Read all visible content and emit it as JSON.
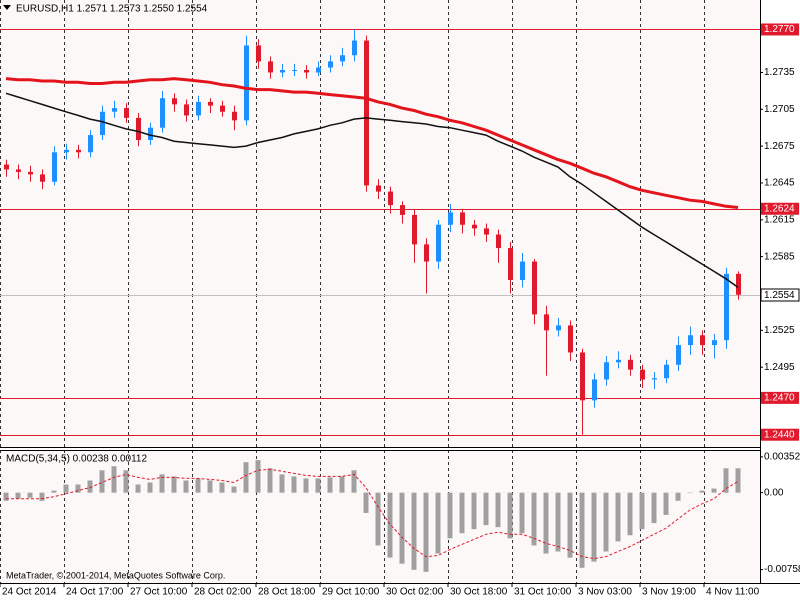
{
  "chart_data": [
    {
      "type": "candlestick",
      "title": "EURUSD,H1  1.2571 1.2573 1.2550 1.2554",
      "x": [
        1.5,
        4.5,
        7.5,
        10.5,
        13.5,
        16.5,
        19.5,
        22.5,
        25.5,
        28.5,
        31.5,
        34.5,
        37.5,
        40.5,
        43.5,
        46.5,
        49.5,
        52.5,
        55.5,
        58.5,
        61.5,
        64.5,
        67.5,
        70.5,
        73.5,
        76.5,
        79.5,
        82.5,
        85.5,
        88.5,
        91.5,
        94.5,
        97.5,
        100.5,
        103.5,
        106.5,
        109.5,
        112.5,
        115.5,
        118.5,
        121.5,
        124.5,
        127.5,
        130.5,
        133.5,
        136.5,
        139.5,
        142.5,
        145.5,
        148.5,
        151.5,
        154.5,
        157.5,
        160.5,
        163.5,
        166.5,
        169.5,
        172.5,
        175.5,
        178.5,
        181.5,
        184.5
      ],
      "open": [
        1.266,
        1.2656,
        1.2654,
        1.2652,
        1.2646,
        1.267,
        1.2672,
        1.267,
        1.2684,
        1.2703,
        1.2706,
        1.2698,
        1.268,
        1.269,
        1.2714,
        1.2709,
        1.27,
        1.2711,
        1.2708,
        1.2703,
        1.2696,
        1.2757,
        1.2744,
        1.2735,
        1.2737,
        1.2737,
        1.2735,
        1.2739,
        1.2744,
        1.2749,
        1.2761,
        1.2643,
        1.2638,
        1.2627,
        1.2619,
        1.2595,
        1.2581,
        1.2611,
        1.2621,
        1.2611,
        1.2608,
        1.2603,
        1.2592,
        1.2566,
        1.2581,
        1.2538,
        1.2525,
        1.2529,
        1.2507,
        1.2468,
        1.2485,
        1.2499,
        1.2501,
        1.2493,
        1.2485,
        1.2486,
        1.2497,
        1.2513,
        1.2521,
        1.2513,
        1.2517,
        1.2571
      ],
      "high": [
        1.2664,
        1.266,
        1.2659,
        1.2656,
        1.2675,
        1.2677,
        1.2676,
        1.2688,
        1.2708,
        1.2712,
        1.271,
        1.2702,
        1.2694,
        1.272,
        1.2718,
        1.2713,
        1.2716,
        1.2714,
        1.2712,
        1.2708,
        1.2765,
        1.2762,
        1.2748,
        1.2742,
        1.2742,
        1.2741,
        1.2744,
        1.2749,
        1.2755,
        1.277,
        1.2765,
        1.2648,
        1.2642,
        1.263,
        1.2623,
        1.26,
        1.2615,
        1.2628,
        1.2624,
        1.2615,
        1.2612,
        1.2607,
        1.2597,
        1.2588,
        1.2583,
        1.2545,
        1.2535,
        1.2533,
        1.251,
        1.249,
        1.2504,
        1.2508,
        1.2505,
        1.2497,
        1.2491,
        1.2501,
        1.252,
        1.2528,
        1.2525,
        1.2522,
        1.2576,
        1.2573
      ],
      "low": [
        1.265,
        1.2648,
        1.2646,
        1.264,
        1.2643,
        1.2664,
        1.2665,
        1.2666,
        1.268,
        1.2698,
        1.2694,
        1.2675,
        1.2676,
        1.2686,
        1.2703,
        1.2695,
        1.2696,
        1.2702,
        1.2699,
        1.2688,
        1.2692,
        1.2738,
        1.273,
        1.2731,
        1.2732,
        1.273,
        1.2732,
        1.2735,
        1.274,
        1.2744,
        1.2638,
        1.2632,
        1.262,
        1.2612,
        1.258,
        1.2555,
        1.2575,
        1.2605,
        1.2604,
        1.2602,
        1.2597,
        1.258,
        1.2555,
        1.256,
        1.253,
        1.2488,
        1.252,
        1.25,
        1.244,
        1.2462,
        1.248,
        1.2494,
        1.2488,
        1.2478,
        1.2477,
        1.2482,
        1.2492,
        1.2505,
        1.2505,
        1.2502,
        1.251,
        1.255
      ],
      "close": [
        1.2656,
        1.2654,
        1.2652,
        1.2646,
        1.267,
        1.2672,
        1.267,
        1.2684,
        1.2703,
        1.2706,
        1.2698,
        1.268,
        1.269,
        1.2714,
        1.2709,
        1.27,
        1.2711,
        1.2708,
        1.2703,
        1.2696,
        1.2757,
        1.2744,
        1.2735,
        1.2737,
        1.2737,
        1.2735,
        1.2739,
        1.2744,
        1.2749,
        1.2761,
        1.2643,
        1.2638,
        1.2627,
        1.2619,
        1.2595,
        1.2581,
        1.2611,
        1.2621,
        1.2611,
        1.2608,
        1.2603,
        1.2592,
        1.2566,
        1.2581,
        1.2538,
        1.2525,
        1.2529,
        1.2507,
        1.2468,
        1.2485,
        1.2499,
        1.2501,
        1.2493,
        1.2485,
        1.2486,
        1.2497,
        1.2513,
        1.2521,
        1.2513,
        1.2517,
        1.2571,
        1.2554
      ],
      "up_color": "#1e8fff",
      "down_color": "#e01a2c",
      "series": [
        {
          "color": "#e3141c",
          "width": 3,
          "values": [
            1.273,
            1.2729,
            1.2729,
            1.2728,
            1.2728,
            1.2727,
            1.2727,
            1.2726,
            1.2726,
            1.2727,
            1.2727,
            1.2728,
            1.2729,
            1.2729,
            1.273,
            1.2729,
            1.2728,
            1.2727,
            1.2725,
            1.2724,
            1.2722,
            1.2721,
            1.2721,
            1.272,
            1.2719,
            1.2719,
            1.2718,
            1.2717,
            1.2716,
            1.2715,
            1.2714,
            1.2711,
            1.2709,
            1.2706,
            1.2704,
            1.2701,
            1.2699,
            1.2696,
            1.2694,
            1.2691,
            1.2688,
            1.2684,
            1.268,
            1.2676,
            1.2672,
            1.2668,
            1.2664,
            1.2661,
            1.2657,
            1.2653,
            1.265,
            1.2646,
            1.2642,
            1.2639,
            1.2637,
            1.2635,
            1.2633,
            1.2631,
            1.263,
            1.2628,
            1.2626,
            1.2625
          ]
        },
        {
          "color": "#111111",
          "width": 1.5,
          "values": [
            1.2718,
            1.2715,
            1.2712,
            1.2709,
            1.2706,
            1.2703,
            1.27,
            1.2697,
            1.2695,
            1.2692,
            1.2689,
            1.2687,
            1.2684,
            1.2682,
            1.2679,
            1.2678,
            1.2677,
            1.2676,
            1.2675,
            1.2674,
            1.2675,
            1.2678,
            1.268,
            1.2682,
            1.2685,
            1.2687,
            1.2689,
            1.2692,
            1.2694,
            1.2697,
            1.2698,
            1.2697,
            1.2696,
            1.2695,
            1.2694,
            1.2693,
            1.2691,
            1.269,
            1.2688,
            1.2686,
            1.2684,
            1.2679,
            1.2675,
            1.2671,
            1.2666,
            1.2662,
            1.2658,
            1.265,
            1.2644,
            1.2637,
            1.263,
            1.2623,
            1.2616,
            1.2609,
            1.2603,
            1.2597,
            1.2591,
            1.2585,
            1.2579,
            1.2573,
            1.2567,
            1.256
          ]
        }
      ],
      "levels": [
        {
          "value": 1.277,
          "label": "1.2770"
        },
        1.2624,
        {
          "value": 1.247,
          "label": "1.2470"
        },
        {
          "value": 1.244,
          "label": "1.2440"
        }
      ],
      "level_color": "#e01a2c",
      "last_price": 1.2554,
      "xlim": [
        0,
        190
      ],
      "xticks": [
        {
          "value": 0,
          "label": "24 Oct 2014"
        },
        {
          "value": 16,
          "label": "24 Oct 17:00"
        },
        {
          "value": 32,
          "label": "27 Oct 10:00"
        },
        {
          "value": 48,
          "label": "28 Oct 02:00"
        },
        {
          "value": 64,
          "label": "28 Oct 18:00"
        },
        {
          "value": 80,
          "label": "29 Oct 10:00"
        },
        {
          "value": 96,
          "label": "30 Oct 02:00"
        },
        {
          "value": 112,
          "label": "30 Oct 18:00"
        },
        {
          "value": 128,
          "label": "31 Oct 10:00"
        },
        {
          "value": 144,
          "label": "3 Nov 03:00"
        },
        {
          "value": 160,
          "label": "3 Nov 19:00"
        },
        {
          "value": 176,
          "label": "4 Nov 11:00"
        }
      ],
      "ylim": [
        1.243,
        1.2794
      ],
      "yticks": [
        1.2735,
        1.2705,
        1.2675,
        1.2645,
        1.2615,
        1.2585,
        1.2525,
        1.2495
      ],
      "grid": true
    },
    {
      "type": "macd",
      "title": "MACD(5,34,5) 0.00238 0.00112",
      "x": [
        1.5,
        4.5,
        7.5,
        10.5,
        13.5,
        16.5,
        19.5,
        22.5,
        25.5,
        28.5,
        31.5,
        34.5,
        37.5,
        40.5,
        43.5,
        46.5,
        49.5,
        52.5,
        55.5,
        58.5,
        61.5,
        64.5,
        67.5,
        70.5,
        73.5,
        76.5,
        79.5,
        82.5,
        85.5,
        88.5,
        91.5,
        94.5,
        97.5,
        100.5,
        103.5,
        106.5,
        109.5,
        112.5,
        115.5,
        118.5,
        121.5,
        124.5,
        127.5,
        130.5,
        133.5,
        136.5,
        139.5,
        142.5,
        145.5,
        148.5,
        151.5,
        154.5,
        157.5,
        160.5,
        163.5,
        166.5,
        169.5,
        172.5,
        175.5,
        178.5,
        181.5,
        184.5
      ],
      "series": [
        {
          "color": "#a0a0a0",
          "values": [
            -0.0008,
            -0.0006,
            -0.0005,
            -0.0008,
            0.0002,
            0.0008,
            0.0008,
            0.0012,
            0.0022,
            0.0026,
            0.0022,
            0.0008,
            0.001,
            0.0018,
            0.0016,
            0.0012,
            0.0014,
            0.0012,
            0.001,
            0.0006,
            0.003,
            0.0032,
            0.0024,
            0.0018,
            0.0016,
            0.0014,
            0.0014,
            0.0015,
            0.0016,
            0.0022,
            -0.002,
            -0.0052,
            -0.0064,
            -0.007,
            -0.0076,
            -0.0078,
            -0.006,
            -0.0045,
            -0.004,
            -0.0036,
            -0.0032,
            -0.0034,
            -0.0045,
            -0.004,
            -0.0052,
            -0.006,
            -0.0058,
            -0.0064,
            -0.0074,
            -0.0068,
            -0.0058,
            -0.0048,
            -0.0042,
            -0.0036,
            -0.003,
            -0.0022,
            -0.0008,
            0.0,
            0.0002,
            0.0004,
            0.0024,
            0.0024
          ]
        },
        {
          "color": "#e01a2c",
          "values": [
            -0.0006,
            -0.0006,
            -0.0006,
            -0.0006,
            -0.0004,
            -0.0001,
            0.0002,
            0.0005,
            0.001,
            0.0015,
            0.0018,
            0.0015,
            0.0013,
            0.0015,
            0.0015,
            0.0014,
            0.0014,
            0.0013,
            0.0012,
            0.001,
            0.0017,
            0.0022,
            0.0023,
            0.0021,
            0.0019,
            0.0017,
            0.0016,
            0.0016,
            0.0016,
            0.0018,
            0.0005,
            -0.0014,
            -0.0031,
            -0.0044,
            -0.0055,
            -0.0063,
            -0.0062,
            -0.0056,
            -0.0051,
            -0.0046,
            -0.0041,
            -0.0039,
            -0.0041,
            -0.0041,
            -0.0045,
            -0.005,
            -0.0053,
            -0.0057,
            -0.0063,
            -0.0065,
            -0.0063,
            -0.0058,
            -0.0053,
            -0.0047,
            -0.0041,
            -0.0035,
            -0.0026,
            -0.0017,
            -0.0011,
            -0.0006,
            0.0004,
            0.0011
          ]
        }
      ],
      "xlim": [
        0,
        190
      ],
      "ylim": [
        -0.0089,
        0.0042
      ],
      "yticks": [
        0.00352,
        {
          "value": 0,
          "label": "0.00"
        },
        -0.00758
      ]
    }
  ],
  "footer": "MetaTrader, © 2001-2014, MetaQuotes Software Corp."
}
